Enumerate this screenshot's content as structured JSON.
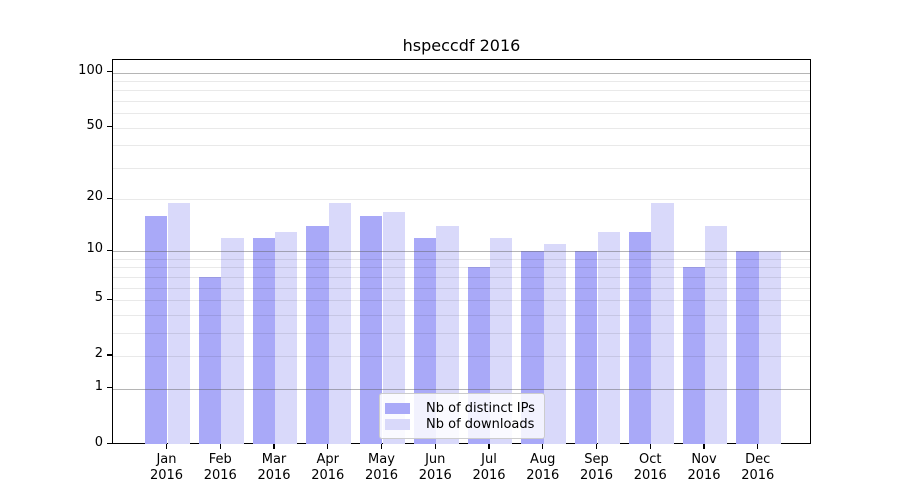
{
  "title": "hspeccdf 2016",
  "legend": {
    "items": [
      {
        "label": "Nb of distinct IPs",
        "color": "#a9a9f8"
      },
      {
        "label": "Nb of downloads",
        "color": "#d9d9fa"
      }
    ]
  },
  "y_axis": {
    "tick_labels": [
      "100",
      "50",
      "20",
      "10",
      "5",
      "2",
      "1",
      "0"
    ],
    "tick_values": [
      100,
      50,
      20,
      10,
      5,
      2,
      1,
      0
    ]
  },
  "x_axis": {
    "months": [
      "Jan",
      "Feb",
      "Mar",
      "Apr",
      "May",
      "Jun",
      "Jul",
      "Aug",
      "Sep",
      "Oct",
      "Nov",
      "Dec"
    ],
    "year": "2016"
  },
  "chart_data": {
    "type": "bar",
    "title": "hspeccdf 2016",
    "categories": [
      "Jan 2016",
      "Feb 2016",
      "Mar 2016",
      "Apr 2016",
      "May 2016",
      "Jun 2016",
      "Jul 2016",
      "Aug 2016",
      "Sep 2016",
      "Oct 2016",
      "Nov 2016",
      "Dec 2016"
    ],
    "series": [
      {
        "name": "Nb of distinct IPs",
        "color": "#a9a9f8",
        "values": [
          16,
          7,
          12,
          14,
          16,
          12,
          8,
          10,
          10,
          13,
          8,
          10
        ]
      },
      {
        "name": "Nb of downloads",
        "color": "#d9d9fa",
        "values": [
          19,
          12,
          13,
          19,
          17,
          14,
          12,
          11,
          13,
          19,
          14,
          10
        ]
      }
    ],
    "xlabel": "",
    "ylabel": "",
    "yscale": "log1p",
    "ylim": [
      0,
      118
    ],
    "y_ticks": [
      0,
      1,
      2,
      5,
      10,
      20,
      50,
      100
    ],
    "y_major_gridlines": [
      1,
      10,
      100
    ],
    "y_minor_gridlines": [
      2,
      3,
      4,
      5,
      6,
      7,
      8,
      9,
      20,
      30,
      40,
      50,
      60,
      70,
      80,
      90
    ],
    "grid": true,
    "legend_position": "lower center"
  }
}
